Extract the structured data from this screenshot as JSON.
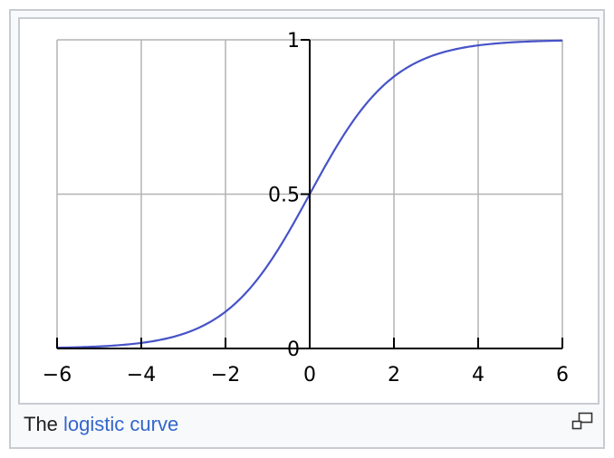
{
  "caption": {
    "prefix": "The ",
    "link_text": "logistic curve"
  },
  "icons": {
    "magnify": "enlarge-icon"
  },
  "colors": {
    "curve": "#4653c8",
    "grid": "#b3b3b3",
    "axis": "#000000",
    "link": "#3366cc",
    "border": "#c8ccd1"
  },
  "chart_data": {
    "type": "line",
    "title": "",
    "xlabel": "",
    "ylabel": "",
    "function": "1/(1+e^-x)",
    "xlim": [
      -6,
      6
    ],
    "ylim": [
      0,
      1
    ],
    "grid": true,
    "x_ticks": [
      -6,
      -4,
      -2,
      0,
      2,
      4,
      6
    ],
    "x_tick_labels": [
      "−6",
      "−4",
      "−2",
      "0",
      "2",
      "4",
      "6"
    ],
    "y_ticks": [
      0,
      0.5,
      1
    ],
    "y_tick_labels": [
      "0",
      "0.5",
      "1"
    ],
    "series": [
      {
        "x": [
          -6,
          -5.5,
          -5,
          -4.5,
          -4,
          -3.5,
          -3,
          -2.5,
          -2,
          -1.5,
          -1,
          -0.5,
          0,
          0.5,
          1,
          1.5,
          2,
          2.5,
          3,
          3.5,
          4,
          4.5,
          5,
          5.5,
          6
        ],
        "y": [
          0.0025,
          0.0041,
          0.0067,
          0.011,
          0.018,
          0.029,
          0.047,
          0.076,
          0.119,
          0.182,
          0.269,
          0.378,
          0.5,
          0.622,
          0.731,
          0.818,
          0.881,
          0.924,
          0.953,
          0.971,
          0.982,
          0.989,
          0.993,
          0.996,
          0.9975
        ]
      }
    ]
  }
}
